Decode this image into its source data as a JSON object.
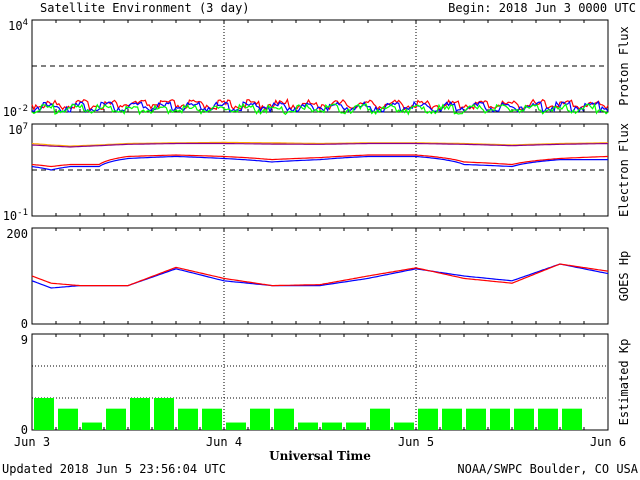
{
  "header": {
    "title": "Satellite Environment (3 day)",
    "begin": "Begin:  2018 Jun 3 0000 UTC"
  },
  "footer": {
    "updated": "Updated 2018 Jun  5 23:56:04 UTC",
    "credit": "NOAA/SWPC Boulder, CO USA"
  },
  "colors": {
    "red": "#ff0000",
    "blue": "#0000ff",
    "green": "#00ff00",
    "orange": "#ffa500",
    "purple": "#8b008b"
  },
  "chart_data": [
    {
      "type": "line",
      "ylabel": "Proton Flux",
      "yscale": "log",
      "ylim": [
        0.01,
        10000
      ],
      "yticks": [
        {
          "base": "10",
          "exp": "4"
        },
        {
          "base": "10",
          "exp": "-2"
        }
      ],
      "threshold": 10,
      "x": [
        0,
        0.25,
        0.5,
        0.75,
        1,
        1.25,
        1.5,
        1.75,
        2,
        2.25,
        2.5,
        2.75,
        3
      ],
      "series": [
        {
          "color": "#ff0000",
          "values": [
            0.03,
            0.03,
            0.032,
            0.03,
            0.03,
            0.031,
            0.03,
            0.032,
            0.03,
            0.03,
            0.031,
            0.03,
            0.03
          ]
        },
        {
          "color": "#0000ff",
          "values": [
            0.022,
            0.021,
            0.022,
            0.022,
            0.021,
            0.022,
            0.022,
            0.021,
            0.022,
            0.022,
            0.021,
            0.022,
            0.022
          ]
        },
        {
          "color": "#00ff00",
          "values": [
            0.015,
            0.016,
            0.015,
            0.015,
            0.016,
            0.015,
            0.015,
            0.016,
            0.015,
            0.015,
            0.016,
            0.015,
            0.015
          ]
        }
      ]
    },
    {
      "type": "line",
      "ylabel": "Electron Flux",
      "yscale": "log",
      "ylim": [
        0.1,
        10000000
      ],
      "yticks": [
        {
          "base": "10",
          "exp": "7"
        },
        {
          "base": "10",
          "exp": "-1"
        }
      ],
      "threshold": 1000,
      "x": [
        0,
        0.1,
        0.2,
        0.35,
        0.5,
        0.75,
        1,
        1.25,
        1.5,
        1.75,
        2,
        2.25,
        2.5,
        2.75,
        3
      ],
      "series": [
        {
          "color": "#ffa500",
          "values": [
            200000,
            150000,
            120000,
            150000,
            200000,
            230000,
            250000,
            230000,
            200000,
            230000,
            230000,
            200000,
            150000,
            200000,
            230000
          ]
        },
        {
          "color": "#8b008b",
          "values": [
            150000,
            120000,
            100000,
            130000,
            170000,
            200000,
            200000,
            180000,
            170000,
            200000,
            200000,
            170000,
            130000,
            170000,
            200000
          ]
        },
        {
          "color": "#ff0000",
          "values": [
            3000,
            2000,
            3000,
            3000,
            15000,
            20000,
            15000,
            8000,
            12000,
            20000,
            20000,
            5000,
            3000,
            10000,
            15000
          ]
        },
        {
          "color": "#0000ff",
          "values": [
            2000,
            1000,
            2000,
            2000,
            10000,
            15000,
            10000,
            5000,
            8000,
            15000,
            15000,
            3000,
            2000,
            8000,
            8000
          ]
        }
      ]
    },
    {
      "type": "line",
      "ylabel": "GOES Hp",
      "ylim": [
        0,
        200
      ],
      "yticks": [
        "200",
        "0"
      ],
      "x": [
        0,
        0.1,
        0.25,
        0.5,
        0.75,
        1,
        1.25,
        1.5,
        1.75,
        2,
        2.25,
        2.5,
        2.75,
        3
      ],
      "series": [
        {
          "color": "#0000ff",
          "values": [
            90,
            75,
            80,
            80,
            115,
            90,
            80,
            80,
            95,
            115,
            100,
            90,
            125,
            105
          ]
        },
        {
          "color": "#ff0000",
          "values": [
            100,
            85,
            80,
            80,
            118,
            95,
            80,
            82,
            100,
            117,
            95,
            85,
            125,
            110
          ]
        }
      ]
    },
    {
      "type": "bar",
      "ylabel": "Estimated Kp",
      "ylim": [
        0,
        9
      ],
      "yticks": [
        "9",
        "0"
      ],
      "x": [
        0.0625,
        0.1875,
        0.3125,
        0.4375,
        0.5625,
        0.6875,
        0.8125,
        0.9375,
        1.0625,
        1.1875,
        1.3125,
        1.4375,
        1.5625,
        1.6875,
        1.8125,
        1.9375,
        2.0625,
        2.1875,
        2.3125,
        2.4375,
        2.5625,
        2.6875,
        2.8125,
        2.9375
      ],
      "values": [
        3,
        2,
        0.7,
        2,
        3,
        3,
        2,
        2,
        0.7,
        2,
        2,
        0.7,
        0.7,
        0.7,
        2,
        0.7,
        2,
        2,
        2,
        2,
        2,
        2,
        2,
        null
      ],
      "color": "#00ff00"
    }
  ],
  "xaxis": {
    "ticks": [
      "Jun 3",
      "Jun 4",
      "Jun 5",
      "Jun 6"
    ],
    "label": "Universal Time"
  }
}
